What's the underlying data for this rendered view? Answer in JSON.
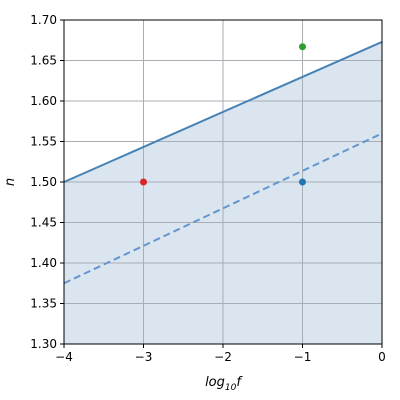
{
  "chart_data": {
    "type": "line",
    "title": "",
    "xlabel": "log10f",
    "xlabel_base": "log",
    "xlabel_sub": "10",
    "xlabel_tail": "f",
    "ylabel": "n",
    "xlim": [
      -4,
      0
    ],
    "ylim": [
      1.3,
      1.7
    ],
    "x_ticks": [
      -4,
      -3,
      -2,
      -1,
      0
    ],
    "y_ticks": [
      1.3,
      1.35,
      1.4,
      1.45,
      1.5,
      1.55,
      1.6,
      1.65,
      1.7
    ],
    "x_tick_labels": [
      "−4",
      "−3",
      "−2",
      "−1",
      "0"
    ],
    "y_tick_labels": [
      "1.30",
      "1.35",
      "1.40",
      "1.45",
      "1.50",
      "1.55",
      "1.60",
      "1.65",
      "1.70"
    ],
    "grid": true,
    "series": [
      {
        "style": "solid",
        "color": "#4682b4",
        "x": [
          -4,
          0
        ],
        "y": [
          1.5,
          1.673
        ],
        "fill_below": true,
        "fill_color": "#dae5f0"
      },
      {
        "style": "dashed",
        "color": "#6495cd",
        "x": [
          -4,
          0
        ],
        "y": [
          1.375,
          1.56
        ]
      }
    ],
    "points": [
      {
        "x": -3,
        "y": 1.5,
        "color": "#d62728"
      },
      {
        "x": -1,
        "y": 1.5,
        "color": "#1f77b4"
      },
      {
        "x": -1,
        "y": 1.667,
        "color": "#2ca02c"
      }
    ]
  }
}
